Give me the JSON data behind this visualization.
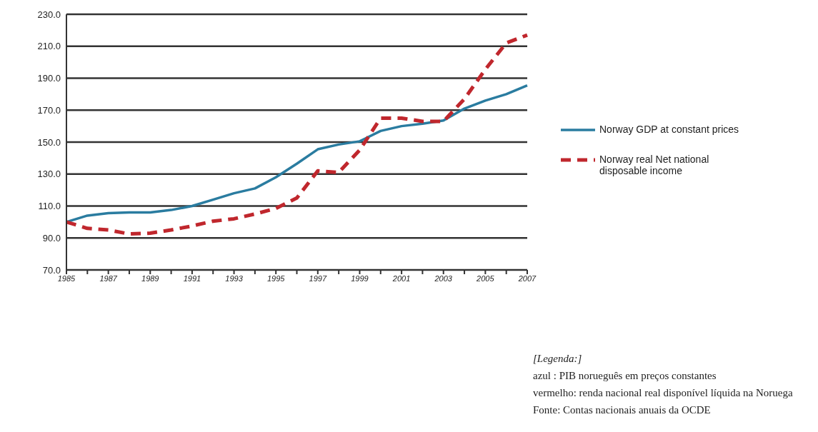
{
  "chart_data": {
    "type": "line",
    "categories": [
      "1985",
      null,
      "1987",
      null,
      "1989",
      null,
      "1991",
      null,
      "1993",
      null,
      "1995",
      null,
      "1997",
      null,
      "1999",
      null,
      "2001",
      null,
      "2003",
      null,
      "2005",
      null,
      "2007"
    ],
    "series": [
      {
        "name": "Norway GDP  at constant prices",
        "color": "#2a7ca0",
        "line_style": "solid",
        "values": [
          100,
          104,
          105.5,
          106,
          106,
          107.5,
          110,
          114,
          118,
          121,
          128,
          136.5,
          145.5,
          148.5,
          150.5,
          157,
          160,
          161.5,
          163.5,
          171,
          176,
          180,
          185.5
        ]
      },
      {
        "name": "Norway real Net national disposable income",
        "color": "#c0272d",
        "line_style": "dashed",
        "values": [
          100,
          96,
          95,
          92.5,
          93,
          95,
          97.5,
          100.5,
          102,
          105,
          108.5,
          115,
          132,
          131,
          145,
          165,
          165,
          163,
          163,
          177,
          195.5,
          212,
          217
        ]
      }
    ],
    "ylim": [
      70,
      230
    ],
    "yticks": [
      {
        "value": 70,
        "label": "70.0"
      },
      {
        "value": 90,
        "label": "90.0"
      },
      {
        "value": 110,
        "label": "110.0"
      },
      {
        "value": 130,
        "label": "130.0"
      },
      {
        "value": 150,
        "label": "150.0"
      },
      {
        "value": 170,
        "label": "170.0"
      },
      {
        "value": 190,
        "label": "190.0"
      },
      {
        "value": 210,
        "label": "210.0"
      },
      {
        "value": 230,
        "label": "230.0"
      }
    ],
    "grid": "y",
    "legend": "right",
    "marker": "none",
    "annotations": [
      "[Legenda:]",
      "azul : PIB norueguês em preços constantes",
      "vermelho: renda nacional real disponível líquida na Noruega",
      "Fonte: Contas nacionais anuais da OCDE"
    ]
  }
}
